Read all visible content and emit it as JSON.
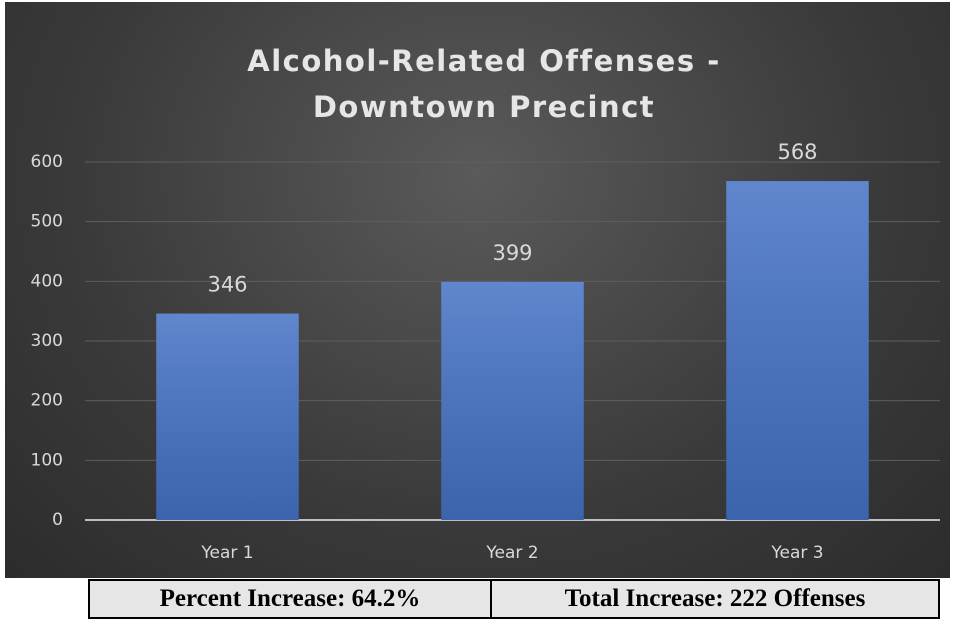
{
  "chart_data": {
    "type": "bar",
    "title": "Alcohol-Related Offenses - Downtown Precinct",
    "categories": [
      "Year 1",
      "Year 2",
      "Year 3"
    ],
    "values": [
      346,
      399,
      568
    ],
    "color": "#4472c4",
    "ylim": [
      0,
      600
    ],
    "yticks": [
      0,
      100,
      200,
      300,
      400,
      500,
      600
    ],
    "grid": true
  },
  "table": {
    "rows": [
      [
        "Percent Increase: 64.2%",
        "Total Increase: 222 Offenses"
      ]
    ]
  }
}
